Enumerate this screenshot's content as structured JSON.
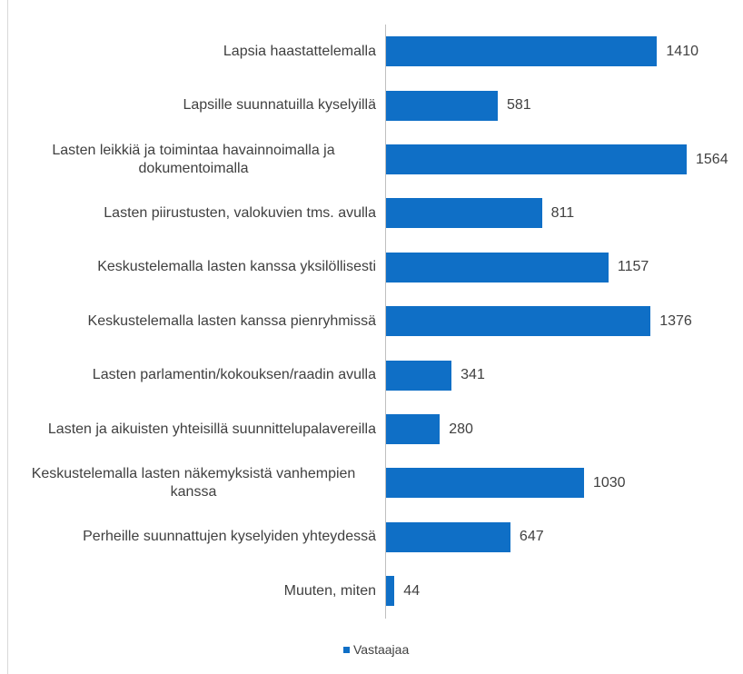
{
  "chart_data": {
    "type": "bar",
    "orientation": "horizontal",
    "categories": [
      "Lapsia haastattelemalla",
      "Lapsille suunnatuilla kyselyillä",
      "Lasten leikkiä ja toimintaa havainnoimalla ja dokumentoimalla",
      "Lasten piirustusten, valokuvien tms. avulla",
      "Keskustelemalla lasten kanssa yksilöllisesti",
      "Keskustelemalla lasten kanssa pienryhmissä",
      "Lasten parlamentin/kokouksen/raadin avulla",
      "Lasten ja aikuisten yhteisillä suunnittelupalavereilla",
      "Keskustelemalla lasten näkemyksistä vanhempien kanssa",
      "Perheille suunnattujen kyselyiden yhteydessä",
      "Muuten, miten"
    ],
    "series": [
      {
        "name": "Vastaajaa",
        "color": "#0f6fc6",
        "values": [
          1410,
          581,
          1564,
          811,
          1157,
          1376,
          341,
          280,
          1030,
          647,
          44
        ]
      }
    ],
    "legend": "bottom"
  }
}
